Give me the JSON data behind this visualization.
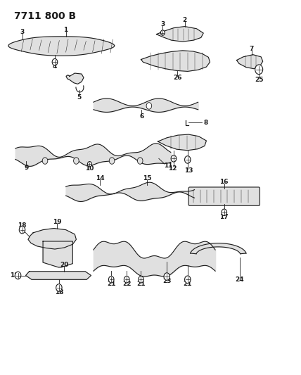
{
  "title": "7711 800 B",
  "background_color": "#ffffff",
  "line_color": "#1a1a1a",
  "fill_color": "#e0e0e0",
  "figsize": [
    4.28,
    5.33
  ],
  "dpi": 100,
  "label_fontsize": 6.5,
  "title_fontsize": 10,
  "title_fontweight": "bold"
}
